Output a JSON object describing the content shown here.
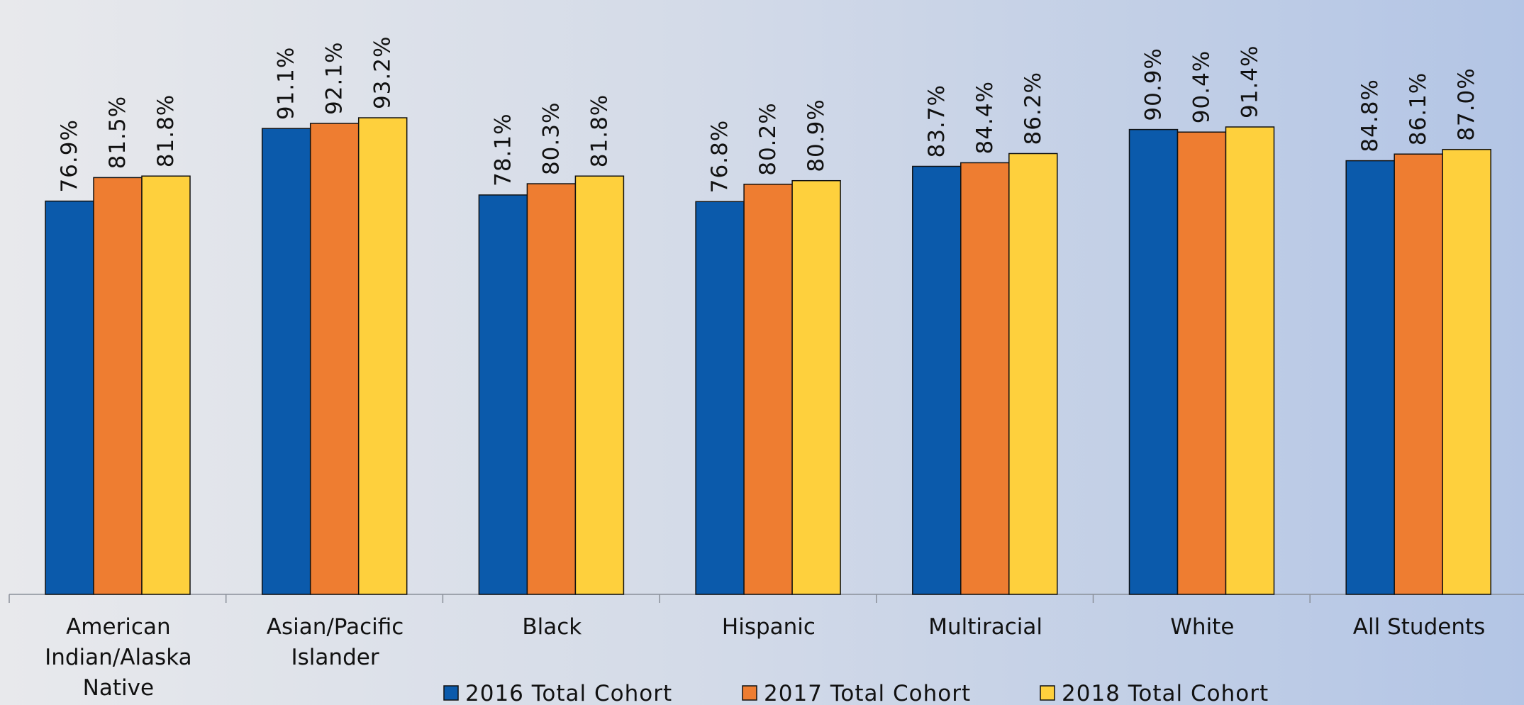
{
  "chart_data": {
    "type": "bar",
    "categories": [
      [
        "American",
        "Indian/Alaska",
        "Native"
      ],
      [
        "Asian/Pacific",
        "Islander"
      ],
      [
        "Black"
      ],
      [
        "Hispanic"
      ],
      [
        "Multiracial"
      ],
      [
        "White"
      ],
      [
        "All Students"
      ]
    ],
    "series": [
      {
        "name": "2016 Total Cohort",
        "color": "#0b5aab",
        "values": [
          76.9,
          91.1,
          78.1,
          76.8,
          83.7,
          90.9,
          84.8
        ],
        "labels": [
          "76.9%",
          "91.1%",
          "78.1%",
          "76.8%",
          "83.7%",
          "90.9%",
          "84.8%"
        ]
      },
      {
        "name": "2017 Total Cohort",
        "color": "#ee7d31",
        "values": [
          81.5,
          92.1,
          80.3,
          80.2,
          84.4,
          90.4,
          86.1
        ],
        "labels": [
          "81.5%",
          "92.1%",
          "80.3%",
          "80.2%",
          "84.4%",
          "90.4%",
          "86.1%"
        ]
      },
      {
        "name": "2018 Total Cohort",
        "color": "#fed03d",
        "values": [
          81.8,
          93.2,
          81.8,
          80.9,
          86.2,
          91.4,
          87.0
        ],
        "labels": [
          "81.8%",
          "93.2%",
          "81.8%",
          "80.9%",
          "86.2%",
          "91.4%",
          "87.0%"
        ]
      }
    ],
    "title": "",
    "xlabel": "",
    "ylabel": "",
    "ylim": [
      0,
      100
    ],
    "grid": false,
    "legend_position": "bottom"
  }
}
